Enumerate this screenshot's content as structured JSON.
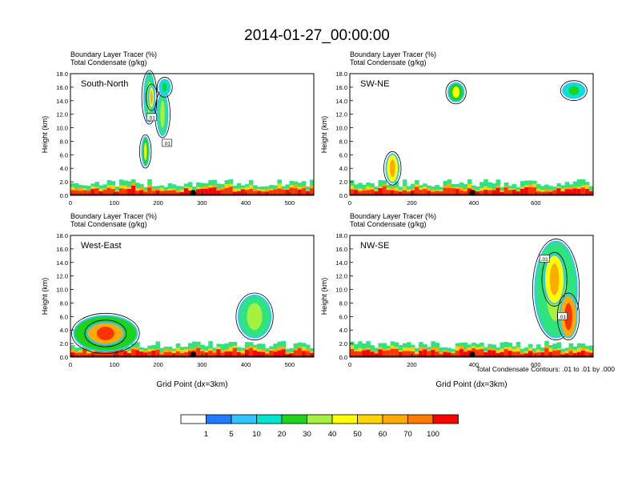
{
  "page": {
    "title": "2014-01-27_00:00:00",
    "footnote": "Total Condensate Contours: .01 to .01 by .000"
  },
  "colors": {
    "levels": [
      "#ffffff",
      "#1f7bff",
      "#2ec6ff",
      "#00e5cf",
      "#2fe37f",
      "#1ed41a",
      "#a6f03e",
      "#ffff00",
      "#ffd300",
      "#ffaa00",
      "#ff7a00",
      "#ff3300",
      "#ff0000"
    ],
    "contour": "#000000",
    "marker": "#000000"
  },
  "chart_data": [
    {
      "type": "heatmap",
      "label": "South-North",
      "line1": "Boundary Layer Tracer   (%)",
      "line2": "Total Condensate   (g/kg)",
      "ylabel": "Height (km)",
      "xlabel": "",
      "xlim": [
        0,
        555
      ],
      "ylim": [
        0,
        18
      ],
      "xticks": [
        "0",
        "100",
        "200",
        "300",
        "400",
        "500"
      ],
      "xtick_values": [
        0,
        100,
        200,
        300,
        400,
        500
      ],
      "yticks": [
        "0.0",
        "2.0",
        "4.0",
        "6.0",
        "8.0",
        "10.0",
        "12.0",
        "14.0",
        "16.0",
        "18.0"
      ],
      "marker_x": 280,
      "contour_labels": [
        {
          "text": ".01",
          "x": 185,
          "y": 11.5
        },
        {
          "text": ".01",
          "x": 220,
          "y": 7.7
        }
      ],
      "cells": [
        {
          "x": 165,
          "y": 4.5,
          "w": 12,
          "h": 4,
          "level": 5
        },
        {
          "x": 170,
          "y": 11,
          "w": 20,
          "h": 7,
          "level": 4
        },
        {
          "x": 180,
          "y": 13,
          "w": 10,
          "h": 3,
          "level": 7
        },
        {
          "x": 200,
          "y": 9,
          "w": 20,
          "h": 6,
          "level": 4
        },
        {
          "x": 205,
          "y": 15,
          "w": 20,
          "h": 2,
          "level": 3
        }
      ]
    },
    {
      "type": "heatmap",
      "label": "SW-NE",
      "line1": "Boundary Layer Tracer   (%)",
      "line2": "Total Condensate   (g/kg)",
      "ylabel": "Height (km)",
      "xlabel": "",
      "xlim": [
        0,
        785
      ],
      "ylim": [
        0,
        18
      ],
      "xticks": [
        "0",
        "200",
        "400",
        "600"
      ],
      "xtick_values": [
        0,
        200,
        400,
        600
      ],
      "yticks": [
        "0.0",
        "2.0",
        "4.0",
        "6.0",
        "8.0",
        "10.0",
        "12.0",
        "14.0",
        "16.0",
        "18.0"
      ],
      "marker_x": 395,
      "contour_labels": [],
      "cells": [
        {
          "x": 120,
          "y": 2,
          "w": 35,
          "h": 4,
          "level": 7
        },
        {
          "x": 320,
          "y": 14,
          "w": 45,
          "h": 2.5,
          "level": 5
        },
        {
          "x": 690,
          "y": 14.5,
          "w": 65,
          "h": 2,
          "level": 3
        }
      ]
    },
    {
      "type": "heatmap",
      "label": "West-East",
      "line1": "Boundary Layer Tracer   (%)",
      "line2": "Total Condensate   (g/kg)",
      "ylabel": "Height (km)",
      "xlabel": "Grid Point (dx=3km)",
      "xlim": [
        0,
        555
      ],
      "ylim": [
        0,
        18
      ],
      "xticks": [
        "0",
        "100",
        "200",
        "300",
        "400",
        "500"
      ],
      "xtick_values": [
        0,
        100,
        200,
        300,
        400,
        500
      ],
      "yticks": [
        "0.0",
        "2.0",
        "4.0",
        "6.0",
        "8.0",
        "10.0",
        "12.0",
        "14.0",
        "16.0",
        "18.0"
      ],
      "marker_x": 280,
      "contour_labels": [],
      "cells": [
        {
          "x": 10,
          "y": 1,
          "w": 140,
          "h": 5,
          "level": 5
        },
        {
          "x": 40,
          "y": 2,
          "w": 80,
          "h": 3,
          "level": 9
        },
        {
          "x": 385,
          "y": 3,
          "w": 70,
          "h": 6,
          "level": 4
        }
      ]
    },
    {
      "type": "heatmap",
      "label": "NW-SE",
      "line1": "Boundary Layer Tracer   (%)",
      "line2": "Total Condensate   (g/kg)",
      "ylabel": "Height (km)",
      "xlabel": "Grid Point (dx=3km)",
      "xlim": [
        0,
        785
      ],
      "ylim": [
        0,
        18
      ],
      "xticks": [
        "0",
        "200",
        "400",
        "600"
      ],
      "xtick_values": [
        0,
        200,
        400,
        600
      ],
      "yticks": [
        "0.0",
        "2.0",
        "4.0",
        "6.0",
        "8.0",
        "10.0",
        "12.0",
        "14.0",
        "16.0",
        "18.0"
      ],
      "marker_x": 395,
      "contour_labels": [
        {
          "text": ".01",
          "x": 628,
          "y": 14.5
        },
        {
          "text": ".01",
          "x": 686,
          "y": 6
        }
      ],
      "cells": [
        {
          "x": 600,
          "y": 3,
          "w": 130,
          "h": 14,
          "level": 4
        },
        {
          "x": 630,
          "y": 8,
          "w": 60,
          "h": 7,
          "level": 7
        },
        {
          "x": 680,
          "y": 3,
          "w": 50,
          "h": 6,
          "level": 9
        }
      ]
    }
  ],
  "colorbar": {
    "labels": [
      "1",
      "5",
      "10",
      "20",
      "30",
      "40",
      "50",
      "60",
      "70",
      "100"
    ]
  }
}
